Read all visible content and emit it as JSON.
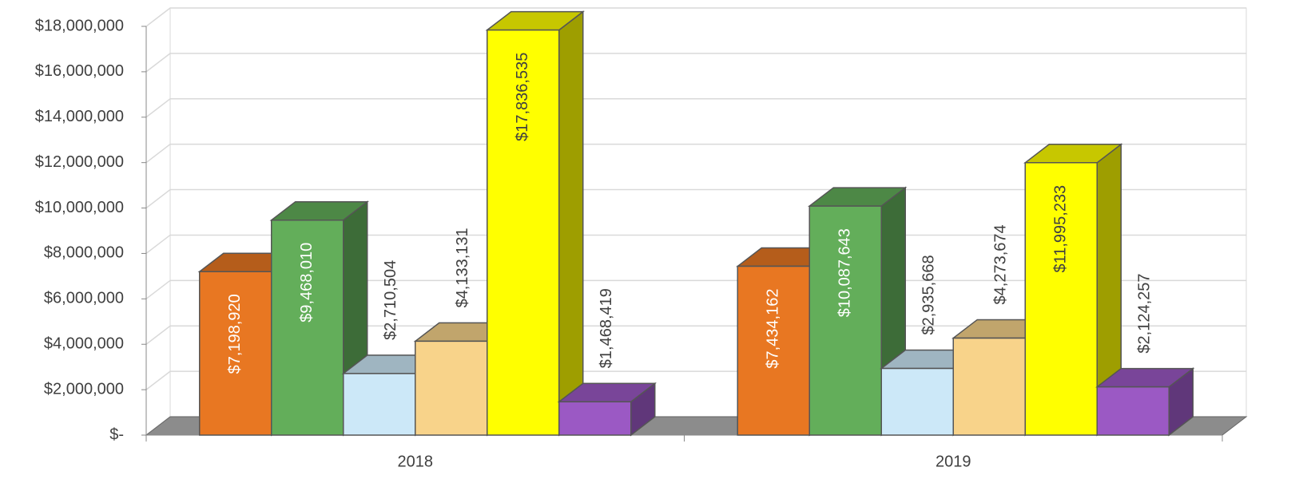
{
  "chart_data": {
    "type": "bar3d",
    "categories": [
      "2018",
      "2019"
    ],
    "series": [
      {
        "color": "#e87722",
        "values": [
          7198920,
          7434162
        ],
        "value_labels": [
          "$7,198,920",
          "$7,434,162"
        ]
      },
      {
        "color": "#63ae5a",
        "values": [
          9468010,
          10087643
        ],
        "value_labels": [
          "$9,468,010",
          "$10,087,643"
        ]
      },
      {
        "color": "#cce8f8",
        "values": [
          2710504,
          2935668
        ],
        "value_labels": [
          "$2,710,504",
          "$2,935,668"
        ]
      },
      {
        "color": "#f8d38a",
        "values": [
          4133131,
          4273674
        ],
        "value_labels": [
          "$4,133,131",
          "$4,273,674"
        ]
      },
      {
        "color": "#ffff00",
        "values": [
          17836535,
          11995233
        ],
        "value_labels": [
          "$17,836,535",
          "$11,995,233"
        ]
      },
      {
        "color": "#9b59c4",
        "values": [
          1468419,
          2124257
        ],
        "value_labels": [
          "$1,468,419",
          "$2,124,257"
        ]
      }
    ],
    "ylim": [
      0,
      18000000
    ],
    "yticks": [
      {
        "value": 0,
        "label": "$-"
      },
      {
        "value": 2000000,
        "label": "$2,000,000"
      },
      {
        "value": 4000000,
        "label": "$4,000,000"
      },
      {
        "value": 6000000,
        "label": "$6,000,000"
      },
      {
        "value": 8000000,
        "label": "$8,000,000"
      },
      {
        "value": 10000000,
        "label": "$10,000,000"
      },
      {
        "value": 12000000,
        "label": "$12,000,000"
      },
      {
        "value": 14000000,
        "label": "$14,000,000"
      },
      {
        "value": 16000000,
        "label": "$16,000,000"
      },
      {
        "value": 18000000,
        "label": "$18,000,000"
      }
    ],
    "grid": true
  }
}
